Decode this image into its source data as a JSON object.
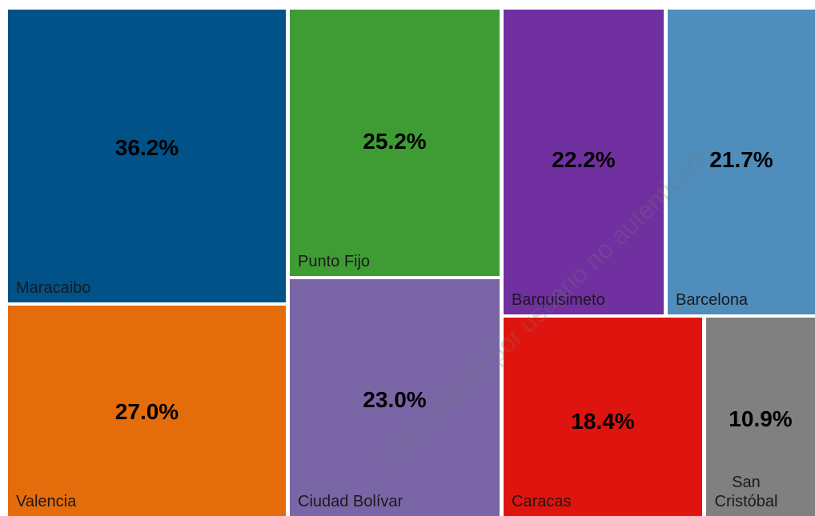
{
  "chart_data": {
    "type": "treemap",
    "categories": [
      "Maracaibo",
      "Valencia",
      "Punto Fijo",
      "Ciudad Bolívar",
      "Barquisimeto",
      "Barcelona",
      "Caracas",
      "San Cristóbal"
    ],
    "values": [
      36.2,
      27,
      25.2,
      23,
      22.2,
      21.7,
      18.4,
      10.9
    ],
    "value_labels": [
      "36.2%",
      "27.0%",
      "25.2%",
      "23.0%",
      "22.2%",
      "21.7%",
      "18.4%",
      "10.9%"
    ],
    "colors": [
      "#005289",
      "#e46c0a",
      "#3f9c35",
      "#7a65a6",
      "#7030a0",
      "#4f8dbd",
      "#e0140f",
      "#808080"
    ],
    "watermark": "Descargado por usuario no autenticado"
  }
}
